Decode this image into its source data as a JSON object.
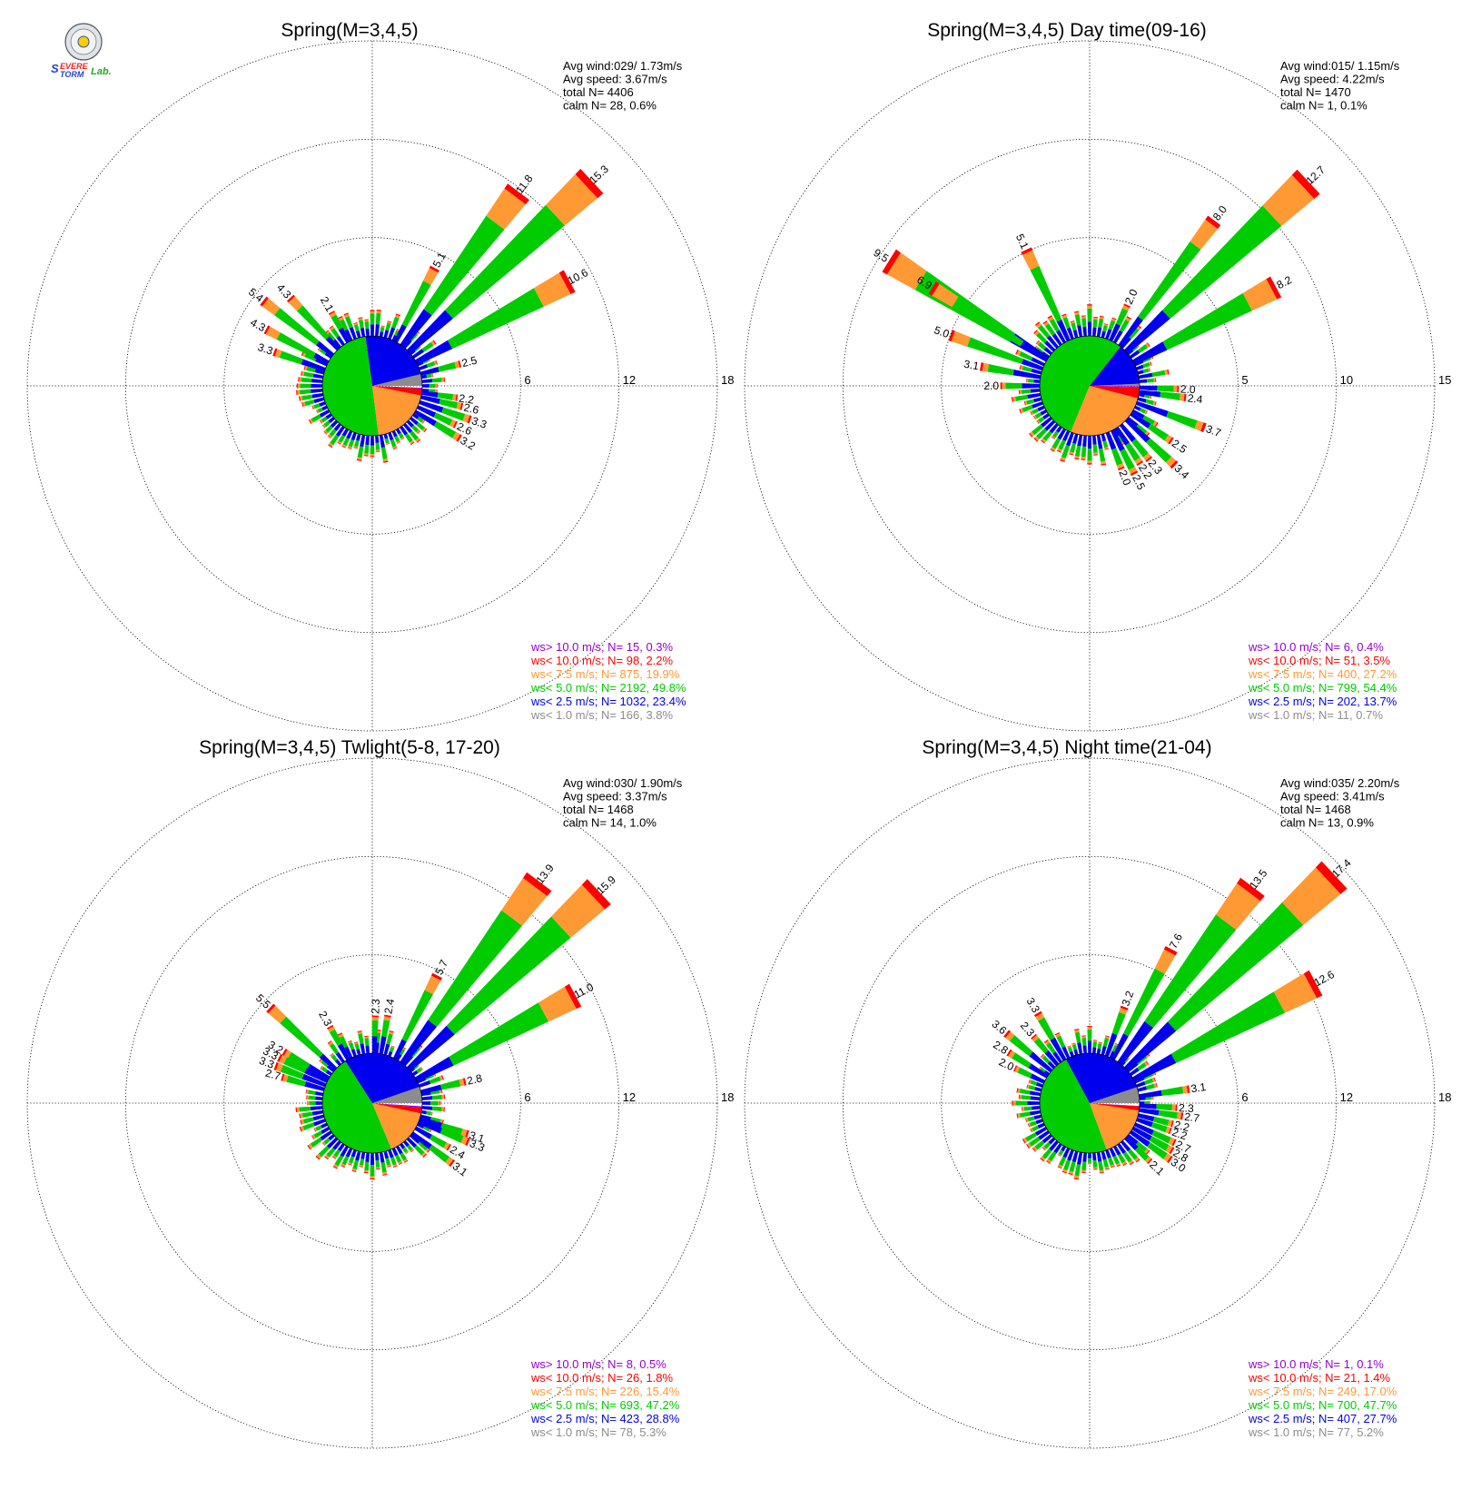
{
  "logo": {
    "alt": "Severe Storm Lab.",
    "brand_text": "Severe Storm Lab."
  },
  "colors": {
    "ws_gt_10": "#9400d3",
    "ws_lt_10": "#ff0000",
    "ws_lt_7_5": "#ff9933",
    "ws_lt_5": "#00cc00",
    "ws_lt_2_5": "#0000ee",
    "ws_lt_1": "#8c8c8c"
  },
  "chart_data": [
    {
      "type": "windrose",
      "title": "Spring(M=3,4,5)",
      "stats": [
        "Avg wind:029/ 1.73m/s",
        "Avg speed: 3.67m/s",
        "total N=      4406",
        "calm N=      28,   0.6%"
      ],
      "ring_max": 18,
      "ring_labels": [
        "6",
        "12",
        "18"
      ],
      "core_fractions": [
        0.038,
        0.234,
        0.498,
        0.199,
        0.022,
        0.003
      ],
      "legend": [
        {
          "text": "ws> 10.0 m/s; N=    15,  0.3%",
          "color_key": "ws_gt_10"
        },
        {
          "text": "ws< 10.0 m/s; N=    98,  2.2%",
          "color_key": "ws_lt_10"
        },
        {
          "text": "ws<  7.5 m/s; N=   875, 19.9%",
          "color_key": "ws_lt_7_5"
        },
        {
          "text": "ws<  5.0 m/s; N=  2192, 49.8%",
          "color_key": "ws_lt_5"
        },
        {
          "text": "ws<  2.5 m/s; N=  1032, 23.4%",
          "color_key": "ws_lt_2_5"
        },
        {
          "text": "ws<  1.0 m/s; N=   166,  3.8%",
          "color_key": "ws_lt_1"
        }
      ],
      "labeled_bars": [
        {
          "dir": 28,
          "value": 5.1,
          "label": "5.1"
        },
        {
          "dir": 37,
          "value": 11.8,
          "label": "11.8"
        },
        {
          "dir": 47,
          "value": 15.3,
          "label": "15.3"
        },
        {
          "dir": 62,
          "value": 10.6,
          "label": "10.6"
        },
        {
          "dir": 76,
          "value": 2.5,
          "label": "2.5"
        },
        {
          "dir": 98,
          "value": 2.2,
          "label": "2.2"
        },
        {
          "dir": 103,
          "value": 2.6,
          "label": "2.6"
        },
        {
          "dir": 109,
          "value": 3.3,
          "label": "3.3"
        },
        {
          "dir": 115,
          "value": 2.6,
          "label": "2.6"
        },
        {
          "dir": 121,
          "value": 3.2,
          "label": "3.2"
        },
        {
          "dir": 331,
          "value": 2.1,
          "label": "2.1"
        },
        {
          "dir": 317,
          "value": 4.3,
          "label": "4.3"
        },
        {
          "dir": 308,
          "value": 5.4,
          "label": "5.4"
        },
        {
          "dir": 298,
          "value": 4.3,
          "label": "4.3"
        },
        {
          "dir": 289,
          "value": 3.3,
          "label": "3.3"
        }
      ]
    },
    {
      "type": "windrose",
      "title": "Spring(M=3,4,5) Day time(09-16)",
      "stats": [
        "Avg wind:015/ 1.15m/s",
        "Avg speed: 4.22m/s",
        "total N=      1470",
        "calm N=        1,   0.1%"
      ],
      "ring_max": 15,
      "ring_labels": [
        "5",
        "10",
        "15"
      ],
      "core_fractions": [
        0.007,
        0.137,
        0.544,
        0.272,
        0.035,
        0.004
      ],
      "legend": [
        {
          "text": "ws> 10.0 m/s; N=     6,  0.4%",
          "color_key": "ws_gt_10"
        },
        {
          "text": "ws< 10.0 m/s; N=    51,  3.5%",
          "color_key": "ws_lt_10"
        },
        {
          "text": "ws<  7.5 m/s; N=   400, 27.2%",
          "color_key": "ws_lt_7_5"
        },
        {
          "text": "ws<  5.0 m/s; N=   799, 54.4%",
          "color_key": "ws_lt_5"
        },
        {
          "text": "ws<  2.5 m/s; N=   202, 13.7%",
          "color_key": "ws_lt_2_5"
        },
        {
          "text": "ws<  1.0 m/s; N=    11,  0.7%",
          "color_key": "ws_lt_1"
        }
      ],
      "labeled_bars": [
        {
          "dir": 25,
          "value": 2.0,
          "label": "2.0"
        },
        {
          "dir": 37,
          "value": 8.0,
          "label": "8.0"
        },
        {
          "dir": 47,
          "value": 12.7,
          "label": "12.7"
        },
        {
          "dir": 62,
          "value": 8.2,
          "label": "8.2"
        },
        {
          "dir": 92,
          "value": 2.0,
          "label": "2.0"
        },
        {
          "dir": 97,
          "value": 2.4,
          "label": "2.4"
        },
        {
          "dir": 110,
          "value": 3.7,
          "label": "3.7"
        },
        {
          "dir": 124,
          "value": 2.5,
          "label": "2.5"
        },
        {
          "dir": 133,
          "value": 3.4,
          "label": "3.4"
        },
        {
          "dir": 141,
          "value": 2.3,
          "label": "2.3"
        },
        {
          "dir": 147,
          "value": 2.2,
          "label": "2.2"
        },
        {
          "dir": 153,
          "value": 2.5,
          "label": "2.5"
        },
        {
          "dir": 159,
          "value": 2.0,
          "label": "2.0"
        },
        {
          "dir": 335,
          "value": 5.1,
          "label": "5.1"
        },
        {
          "dir": 302,
          "value": 9.5,
          "label": "9.5"
        },
        {
          "dir": 302,
          "value": 6.9,
          "label": "6.9"
        },
        {
          "dir": 290,
          "value": 5.0,
          "label": "5.0"
        },
        {
          "dir": 280,
          "value": 3.1,
          "label": "3.1"
        },
        {
          "dir": 270,
          "value": 2.0,
          "label": "2.0"
        }
      ]
    },
    {
      "type": "windrose",
      "title": "Spring(M=3,4,5) Twlight(5-8, 17-20)",
      "stats": [
        "Avg wind:030/ 1.90m/s",
        "Avg speed: 3.37m/s",
        "total N=      1468",
        "calm N=      14,   1.0%"
      ],
      "ring_max": 18,
      "ring_labels": [
        "6",
        "12",
        "18"
      ],
      "core_fractions": [
        0.053,
        0.288,
        0.472,
        0.154,
        0.018,
        0.005
      ],
      "legend": [
        {
          "text": "ws> 10.0 m/s; N=     8,  0.5%",
          "color_key": "ws_gt_10"
        },
        {
          "text": "ws< 10.0 m/s; N=    26,  1.8%",
          "color_key": "ws_lt_10"
        },
        {
          "text": "ws<  7.5 m/s; N=   226, 15.4%",
          "color_key": "ws_lt_7_5"
        },
        {
          "text": "ws<  5.0 m/s; N=   693, 47.2%",
          "color_key": "ws_lt_5"
        },
        {
          "text": "ws<  2.5 m/s; N=   423, 28.8%",
          "color_key": "ws_lt_2_5"
        },
        {
          "text": "ws<  1.0 m/s; N=    78,  5.3%",
          "color_key": "ws_lt_1"
        }
      ],
      "labeled_bars": [
        {
          "dir": 2,
          "value": 2.3,
          "label": "2.3"
        },
        {
          "dir": 10,
          "value": 2.4,
          "label": "2.4"
        },
        {
          "dir": 27,
          "value": 5.7,
          "label": "5.7"
        },
        {
          "dir": 37,
          "value": 13.9,
          "label": "13.9"
        },
        {
          "dir": 47,
          "value": 15.9,
          "label": "15.9"
        },
        {
          "dir": 62,
          "value": 11.0,
          "label": "11.0"
        },
        {
          "dir": 77,
          "value": 2.8,
          "label": "2.8"
        },
        {
          "dir": 108,
          "value": 3.1,
          "label": "3.1"
        },
        {
          "dir": 112,
          "value": 3.3,
          "label": "3.3"
        },
        {
          "dir": 120,
          "value": 2.4,
          "label": "2.4"
        },
        {
          "dir": 127,
          "value": 3.1,
          "label": "3.1"
        },
        {
          "dir": 331,
          "value": 2.3,
          "label": "2.3"
        },
        {
          "dir": 313,
          "value": 5.5,
          "label": "5.5"
        },
        {
          "dir": 300,
          "value": 3.2,
          "label": "3.2"
        },
        {
          "dir": 296,
          "value": 3.3,
          "label": "3.3"
        },
        {
          "dir": 291,
          "value": 3.3,
          "label": "3.3"
        },
        {
          "dir": 286,
          "value": 2.7,
          "label": "2.7"
        }
      ]
    },
    {
      "type": "windrose",
      "title": "Spring(M=3,4,5) Night time(21-04)",
      "stats": [
        "Avg wind:035/ 2.20m/s",
        "Avg speed: 3.41m/s",
        "total N=      1468",
        "calm N=      13,   0.9%"
      ],
      "ring_max": 18,
      "ring_labels": [
        "6",
        "12",
        "18"
      ],
      "core_fractions": [
        0.052,
        0.277,
        0.477,
        0.17,
        0.014,
        0.001
      ],
      "legend": [
        {
          "text": "ws> 10.0 m/s; N=     1,  0.1%",
          "color_key": "ws_gt_10"
        },
        {
          "text": "ws< 10.0 m/s; N=    21,  1.4%",
          "color_key": "ws_lt_10"
        },
        {
          "text": "ws<  7.5 m/s; N=   249, 17.0%",
          "color_key": "ws_lt_7_5"
        },
        {
          "text": "ws<  5.0 m/s; N=   700, 47.7%",
          "color_key": "ws_lt_5"
        },
        {
          "text": "ws<  2.5 m/s; N=   407, 27.7%",
          "color_key": "ws_lt_2_5"
        },
        {
          "text": "ws<  1.0 m/s; N=    77,  5.2%",
          "color_key": "ws_lt_1"
        }
      ],
      "labeled_bars": [
        {
          "dir": 20,
          "value": 3.2,
          "label": "3.2"
        },
        {
          "dir": 28,
          "value": 7.6,
          "label": "7.6"
        },
        {
          "dir": 37,
          "value": 13.5,
          "label": "13.5"
        },
        {
          "dir": 47,
          "value": 17.4,
          "label": "17.4"
        },
        {
          "dir": 62,
          "value": 12.6,
          "label": "12.6"
        },
        {
          "dir": 82,
          "value": 3.1,
          "label": "3.1"
        },
        {
          "dir": 93,
          "value": 2.3,
          "label": "2.3"
        },
        {
          "dir": 98,
          "value": 2.7,
          "label": "2.7"
        },
        {
          "dir": 104,
          "value": 2.2,
          "label": "2.2"
        },
        {
          "dir": 109,
          "value": 2.2,
          "label": "2.2"
        },
        {
          "dir": 115,
          "value": 2.7,
          "label": "2.7"
        },
        {
          "dir": 120,
          "value": 2.8,
          "label": "2.8"
        },
        {
          "dir": 125,
          "value": 3.0,
          "label": "3.0"
        },
        {
          "dir": 134,
          "value": 2.1,
          "label": "2.1"
        },
        {
          "dir": 330,
          "value": 3.3,
          "label": "3.3"
        },
        {
          "dir": 320,
          "value": 2.3,
          "label": "2.3"
        },
        {
          "dir": 310,
          "value": 3.6,
          "label": "3.6"
        },
        {
          "dir": 302,
          "value": 2.8,
          "label": "2.8"
        },
        {
          "dir": 295,
          "value": 2.0,
          "label": "2.0"
        }
      ]
    }
  ]
}
